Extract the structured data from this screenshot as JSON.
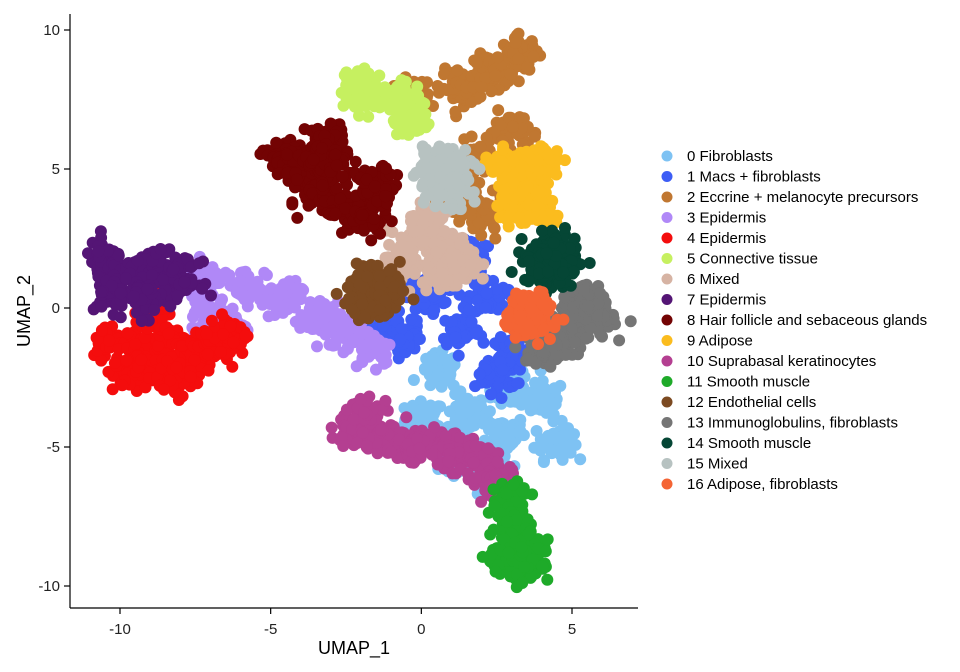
{
  "chart_data": {
    "type": "scatter",
    "title": "",
    "xlabel": "UMAP_1",
    "ylabel": "UMAP_2",
    "xlim": [
      -11.7,
      7.2
    ],
    "ylim": [
      -10.8,
      10.3
    ],
    "x_ticks": [
      "-10",
      "-5",
      "0",
      "5"
    ],
    "y_ticks": [
      "10",
      "5",
      "0",
      "-5",
      "-10"
    ],
    "x_tick_values": [
      -10,
      -5,
      0,
      5
    ],
    "y_tick_values": [
      10,
      5,
      0,
      -5,
      -10
    ],
    "grid": false,
    "legend_placement": "right",
    "series": [
      {
        "name": "0 Fibroblasts",
        "color": "#7ec2f3",
        "regions": [
          [
            0.1,
            -4.0
          ],
          [
            1.5,
            -3.8
          ],
          [
            2.8,
            -4.5
          ],
          [
            4.4,
            -4.8
          ],
          [
            2.2,
            -5.6
          ],
          [
            1.2,
            -5.2
          ],
          [
            4.1,
            -3.3
          ],
          [
            0.6,
            -2.3
          ],
          [
            3.0,
            -2.9
          ]
        ]
      },
      {
        "name": "1 Macs + fibroblasts",
        "color": "#3d5df5",
        "regions": [
          [
            -1.2,
            -0.3
          ],
          [
            0.2,
            0.5
          ],
          [
            1.3,
            -0.8
          ],
          [
            2.2,
            0.4
          ],
          [
            2.9,
            -1.6
          ],
          [
            1.5,
            1.9
          ],
          [
            -0.6,
            -1.1
          ],
          [
            2.5,
            -2.4
          ]
        ]
      },
      {
        "name": "2 Eccrine + melanocyte precursors",
        "color": "#c07731",
        "regions": [
          [
            -0.3,
            7.6
          ],
          [
            1.3,
            7.9
          ],
          [
            2.4,
            8.5
          ],
          [
            3.3,
            9.1
          ],
          [
            2.9,
            6.4
          ],
          [
            1.8,
            5.3
          ],
          [
            2.1,
            3.3
          ],
          [
            1.2,
            3.9
          ]
        ]
      },
      {
        "name": "3 Epidermis",
        "color": "#b088f7",
        "regions": [
          [
            -7.2,
            1.0
          ],
          [
            -5.8,
            0.8
          ],
          [
            -4.6,
            0.3
          ],
          [
            -3.4,
            -0.4
          ],
          [
            -2.4,
            -0.9
          ],
          [
            -6.4,
            -0.7
          ],
          [
            -1.6,
            -1.4
          ],
          [
            -7.0,
            -0.2
          ]
        ]
      },
      {
        "name": "4 Epidermis",
        "color": "#f40d0d",
        "regions": [
          [
            -10.3,
            -1.2
          ],
          [
            -9.3,
            -1.6
          ],
          [
            -8.5,
            -1.3
          ],
          [
            -7.7,
            -1.7
          ],
          [
            -9.6,
            -2.4
          ],
          [
            -8.1,
            -2.5
          ],
          [
            -7.0,
            -1.3
          ],
          [
            -6.4,
            -0.9
          ],
          [
            -8.9,
            -0.4
          ]
        ]
      },
      {
        "name": "5 Connective tissue",
        "color": "#c6f060",
        "regions": [
          [
            -1.6,
            7.6
          ],
          [
            -0.6,
            7.5
          ],
          [
            -2.1,
            7.9
          ],
          [
            -0.3,
            6.8
          ]
        ]
      },
      {
        "name": "6 Mixed",
        "color": "#d6b3a3",
        "regions": [
          [
            -0.2,
            2.5
          ],
          [
            0.9,
            2.2
          ],
          [
            -0.6,
            1.6
          ],
          [
            1.3,
            1.5
          ],
          [
            0.3,
            3.2
          ],
          [
            0.7,
            1.2
          ]
        ]
      },
      {
        "name": "7 Epidermis",
        "color": "#541575",
        "regions": [
          [
            -10.5,
            1.7
          ],
          [
            -9.7,
            1.2
          ],
          [
            -8.8,
            1.6
          ],
          [
            -8.0,
            1.0
          ],
          [
            -10.2,
            0.5
          ],
          [
            -9.2,
            0.3
          ]
        ]
      },
      {
        "name": "8 Hair follicle and sebaceous glands",
        "color": "#730303",
        "regions": [
          [
            -4.6,
            5.4
          ],
          [
            -3.9,
            4.9
          ],
          [
            -3.4,
            4.1
          ],
          [
            -2.5,
            3.6
          ],
          [
            -1.8,
            3.2
          ],
          [
            -3.2,
            6.0
          ],
          [
            -3.0,
            5.1
          ],
          [
            -1.5,
            4.4
          ]
        ]
      },
      {
        "name": "9 Adipose",
        "color": "#fbbc1e",
        "regions": [
          [
            3.4,
            4.6
          ],
          [
            4.0,
            5.2
          ],
          [
            3.1,
            3.8
          ],
          [
            3.8,
            3.6
          ],
          [
            2.7,
            5.2
          ]
        ]
      },
      {
        "name": "10 Suprabasal keratinocytes",
        "color": "#b43f91",
        "regions": [
          [
            -2.2,
            -4.4
          ],
          [
            -1.1,
            -4.7
          ],
          [
            -0.1,
            -4.9
          ],
          [
            0.9,
            -5.2
          ],
          [
            1.9,
            -5.6
          ],
          [
            2.5,
            -6.2
          ],
          [
            -1.7,
            -3.9
          ]
        ]
      },
      {
        "name": "11 Smooth muscle",
        "color": "#1eaa29",
        "regions": [
          [
            3.0,
            -6.8
          ],
          [
            3.1,
            -7.8
          ],
          [
            3.2,
            -8.6
          ],
          [
            3.3,
            -9.3
          ],
          [
            2.8,
            -9.0
          ],
          [
            3.6,
            -9.0
          ]
        ]
      },
      {
        "name": "12 Endothelial cells",
        "color": "#7c4a21",
        "regions": [
          [
            -1.8,
            1.0
          ],
          [
            -1.4,
            0.2
          ],
          [
            -2.0,
            0.3
          ],
          [
            -1.1,
            0.6
          ]
        ]
      },
      {
        "name": "13 Immunoglobulins, fibroblasts",
        "color": "#757575",
        "regions": [
          [
            5.1,
            -0.4
          ],
          [
            5.8,
            -0.5
          ],
          [
            4.6,
            -1.2
          ],
          [
            5.4,
            0.3
          ],
          [
            4.1,
            -1.5
          ]
        ]
      },
      {
        "name": "14 Smooth muscle",
        "color": "#054635",
        "regions": [
          [
            4.3,
            2.1
          ],
          [
            4.8,
            1.7
          ],
          [
            4.4,
            1.3
          ],
          [
            4.0,
            1.6
          ]
        ]
      },
      {
        "name": "15 Mixed",
        "color": "#b7c2c1",
        "regions": [
          [
            0.5,
            4.7
          ],
          [
            0.9,
            4.2
          ],
          [
            0.4,
            5.3
          ],
          [
            1.1,
            5.0
          ]
        ]
      },
      {
        "name": "16 Adipose, fibroblasts",
        "color": "#f46434",
        "regions": [
          [
            3.6,
            0.0
          ],
          [
            3.9,
            -0.5
          ],
          [
            3.4,
            -0.4
          ]
        ]
      }
    ]
  }
}
